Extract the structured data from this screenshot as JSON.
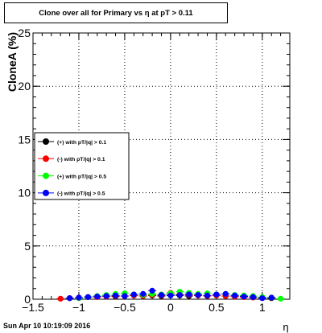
{
  "title": "Clone  over all for Primary vs   η at pT > 0.11",
  "footer": "Sun Apr 10 10:19:09 2016",
  "chart_data": {
    "type": "scatter",
    "xlabel": "η",
    "ylabel": "CloneA (%)",
    "xlim": [
      -1.5,
      1.3
    ],
    "ylim": [
      0,
      25
    ],
    "xticks": [
      -1.5,
      -1,
      -0.5,
      0,
      0.5,
      1
    ],
    "xtick_labels": [
      "−1.5",
      "−1",
      "−0.5",
      "0",
      "0.5",
      "1"
    ],
    "yticks": [
      0,
      5,
      10,
      15,
      20,
      25
    ],
    "ytick_labels": [
      "0",
      "5",
      "10",
      "15",
      "20",
      "25"
    ],
    "grid": true,
    "legend_position": "center-left",
    "series": [
      {
        "name": "(+) with pT/|q| > 0.1",
        "color": "#000000",
        "x": [
          -1.1,
          -1.0,
          -0.9,
          -0.8,
          -0.7,
          -0.6,
          -0.5,
          -0.4,
          -0.3,
          -0.2,
          -0.1,
          0.0,
          0.1,
          0.2,
          0.3,
          0.4,
          0.5,
          0.6,
          0.7,
          0.8,
          0.9,
          1.0,
          1.1
        ],
        "y": [
          0.1,
          0.15,
          0.2,
          0.25,
          0.3,
          0.25,
          0.3,
          0.35,
          0.3,
          0.35,
          0.3,
          0.4,
          0.35,
          0.3,
          0.35,
          0.3,
          0.35,
          0.3,
          0.25,
          0.3,
          0.2,
          0.15,
          0.1
        ]
      },
      {
        "name": "(-) with pT/|q| > 0.1",
        "color": "#ff0000",
        "x": [
          -1.2,
          -1.1,
          -1.0,
          -0.9,
          -0.8,
          -0.7,
          -0.6,
          -0.5,
          -0.4,
          -0.3,
          -0.2,
          -0.1,
          0.0,
          0.1,
          0.2,
          0.3,
          0.4,
          0.5,
          0.6,
          0.7,
          0.8,
          0.9,
          1.0
        ],
        "y": [
          0.05,
          0.1,
          0.15,
          0.2,
          0.2,
          0.25,
          0.3,
          0.3,
          0.35,
          0.3,
          0.4,
          0.35,
          0.6,
          0.45,
          0.4,
          0.35,
          0.3,
          0.35,
          0.3,
          0.25,
          0.2,
          0.15,
          0.1
        ]
      },
      {
        "name": "(+) with pT/|q| > 0.5",
        "color": "#00ff00",
        "x": [
          -1.0,
          -0.9,
          -0.8,
          -0.7,
          -0.6,
          -0.5,
          -0.4,
          -0.3,
          -0.2,
          -0.1,
          0.0,
          0.1,
          0.2,
          0.3,
          0.4,
          0.5,
          0.6,
          0.7,
          0.8,
          0.9,
          1.0,
          1.1,
          1.2
        ],
        "y": [
          0.1,
          0.2,
          0.3,
          0.4,
          0.5,
          0.55,
          0.45,
          0.4,
          0.5,
          0.45,
          0.55,
          0.7,
          0.6,
          0.5,
          0.55,
          0.45,
          0.5,
          0.4,
          0.35,
          0.3,
          0.2,
          0.15,
          0.05
        ]
      },
      {
        "name": "(-) with pT/|q| > 0.5",
        "color": "#0000ff",
        "x": [
          -1.1,
          -1.0,
          -0.9,
          -0.8,
          -0.7,
          -0.6,
          -0.5,
          -0.4,
          -0.3,
          -0.2,
          -0.1,
          0.0,
          0.1,
          0.2,
          0.3,
          0.4,
          0.5,
          0.6,
          0.7,
          0.8,
          0.9,
          1.0,
          1.1
        ],
        "y": [
          0.1,
          0.15,
          0.2,
          0.25,
          0.3,
          0.35,
          0.3,
          0.45,
          0.5,
          0.8,
          0.4,
          0.35,
          0.4,
          0.45,
          0.4,
          0.35,
          0.45,
          0.5,
          0.35,
          0.25,
          0.2,
          0.1,
          0.15
        ]
      }
    ]
  }
}
